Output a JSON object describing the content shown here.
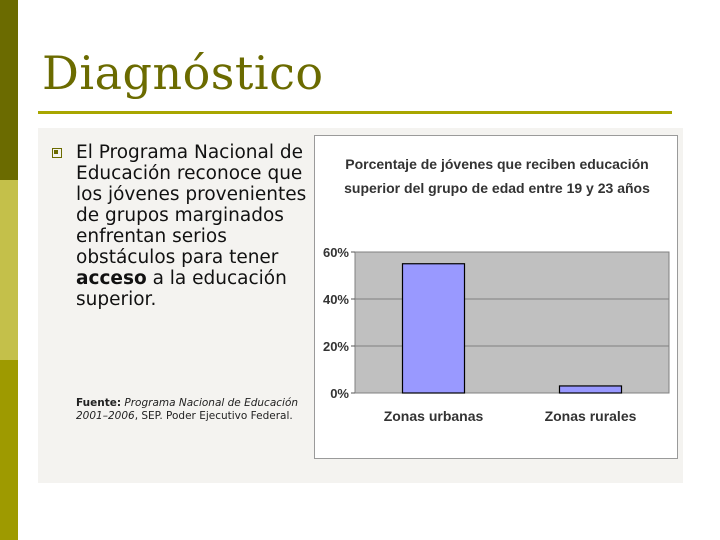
{
  "slide": {
    "title": "Diagnóstico",
    "body": {
      "before": "El Programa Nacional de Educación reconoce que los jóvenes provenientes de grupos marginados enfrentan serios obstáculos para tener ",
      "bold": "acceso",
      "after": " a la educación superior."
    },
    "source": {
      "label": "Fuente:",
      "work": "Programa Nacional de Educación 2001–2006",
      "rest": ", SEP. Poder Ejecutivo Federal."
    }
  },
  "colors": {
    "stripe_top": "#6b6b00",
    "stripe_mid": "#c4c04a",
    "stripe_bottom": "#9e9a00",
    "title": "#6b6b00",
    "bar_fill": "#9999ff",
    "plot_area": "#c0c0c0"
  },
  "chart_data": {
    "type": "bar",
    "title_line1": "Porcentaje de jóvenes que reciben educación",
    "title_line2": "superior del grupo de edad entre 19 y 23 años",
    "categories": [
      "Zonas urbanas",
      "Zonas rurales"
    ],
    "values": [
      55,
      3
    ],
    "ylim": [
      0,
      60
    ],
    "yticks": [
      "0%",
      "20%",
      "40%",
      "60%"
    ],
    "grid": true,
    "legend": "none"
  }
}
